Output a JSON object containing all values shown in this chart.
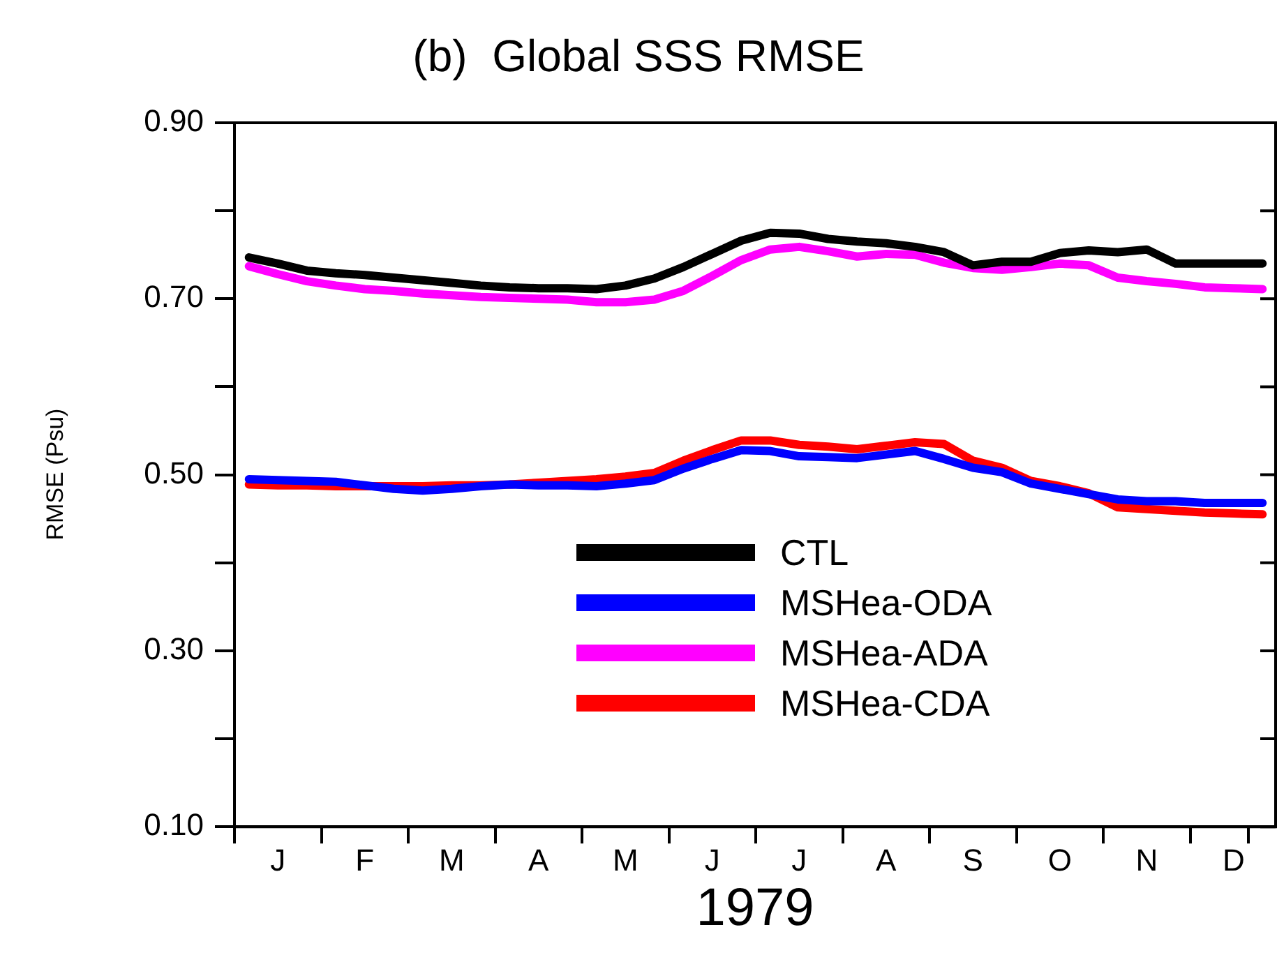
{
  "chart_data": {
    "type": "line",
    "title": "(b)  Global SSS RMSE",
    "xlabel": "1979",
    "ylabel": "RMSE (Psu)",
    "categories": [
      null,
      "J",
      null,
      null,
      "F",
      null,
      null,
      "M",
      null,
      null,
      "A",
      null,
      null,
      "M",
      null,
      null,
      "J",
      null,
      null,
      "J",
      null,
      null,
      "A",
      null,
      null,
      "S",
      null,
      null,
      "O",
      null,
      null,
      "N",
      null,
      null,
      "D",
      null
    ],
    "ylim": [
      0.1,
      0.9
    ],
    "yticks": [
      {
        "value": 0.1,
        "label": "0.10"
      },
      {
        "value": 0.2,
        "label": null
      },
      {
        "value": 0.3,
        "label": "0.30"
      },
      {
        "value": 0.4,
        "label": null
      },
      {
        "value": 0.5,
        "label": "0.50"
      },
      {
        "value": 0.6,
        "label": null
      },
      {
        "value": 0.7,
        "label": "0.70"
      },
      {
        "value": 0.8,
        "label": null
      },
      {
        "value": 0.9,
        "label": "0.90"
      }
    ],
    "grid": false,
    "legend": "bottom",
    "marker": "none",
    "line_style": "solid",
    "series": [
      {
        "name": "CTL",
        "color": "#000000",
        "values": [
          0.747,
          0.74,
          0.732,
          0.729,
          0.727,
          0.724,
          0.721,
          0.718,
          0.715,
          0.713,
          0.712,
          0.712,
          0.711,
          0.715,
          0.723,
          0.736,
          0.751,
          0.766,
          0.775,
          0.774,
          0.768,
          0.765,
          0.763,
          0.759,
          0.753,
          0.738,
          0.742,
          0.742,
          0.752,
          0.755,
          0.753,
          0.756,
          0.74,
          0.74,
          0.74,
          0.74
        ]
      },
      {
        "name": "MSHea-ODA",
        "color": "#0000ff",
        "values": [
          0.495,
          0.494,
          0.493,
          0.492,
          0.488,
          0.484,
          0.482,
          0.484,
          0.487,
          0.489,
          0.488,
          0.488,
          0.487,
          0.49,
          0.494,
          0.507,
          0.518,
          0.528,
          0.527,
          0.521,
          0.52,
          0.519,
          0.523,
          0.527,
          0.518,
          0.508,
          0.503,
          0.49,
          0.484,
          0.478,
          0.472,
          0.47,
          0.47,
          0.468,
          0.468,
          0.468
        ]
      },
      {
        "name": "MSHea-ADA",
        "color": "#ff00ff",
        "values": [
          0.737,
          0.728,
          0.72,
          0.715,
          0.711,
          0.709,
          0.706,
          0.704,
          0.702,
          0.701,
          0.7,
          0.699,
          0.696,
          0.696,
          0.699,
          0.709,
          0.726,
          0.744,
          0.756,
          0.759,
          0.754,
          0.748,
          0.751,
          0.75,
          0.741,
          0.735,
          0.733,
          0.736,
          0.74,
          0.738,
          0.724,
          0.72,
          0.717,
          0.713,
          0.712,
          0.711
        ]
      },
      {
        "name": "MSHea-CDA",
        "color": "#ff0000",
        "values": [
          0.489,
          0.488,
          0.488,
          0.487,
          0.487,
          0.487,
          0.487,
          0.488,
          0.488,
          0.489,
          0.491,
          0.493,
          0.495,
          0.498,
          0.502,
          0.516,
          0.528,
          0.539,
          0.539,
          0.534,
          0.532,
          0.529,
          0.533,
          0.537,
          0.535,
          0.516,
          0.508,
          0.493,
          0.487,
          0.479,
          0.463,
          0.461,
          0.459,
          0.457,
          0.456,
          0.455
        ]
      }
    ]
  }
}
